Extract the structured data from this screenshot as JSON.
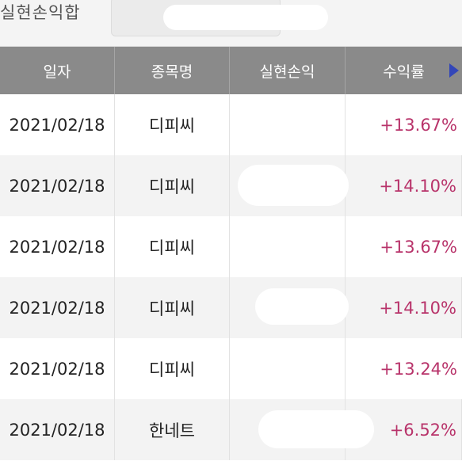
{
  "summary": {
    "label": "실현손익합",
    "value": ""
  },
  "table": {
    "headers": {
      "date": "일자",
      "name": "종목명",
      "profit": "실현손익",
      "rate": "수익률"
    },
    "scroll_icon": "triangle-right-icon",
    "rows": [
      {
        "date": "2021/02/18",
        "name": "디피씨",
        "profit": "",
        "rate": "+13.67%"
      },
      {
        "date": "2021/02/18",
        "name": "디피씨",
        "profit": "",
        "rate": "+14.10%"
      },
      {
        "date": "2021/02/18",
        "name": "디피씨",
        "profit": "",
        "rate": "+13.67%"
      },
      {
        "date": "2021/02/18",
        "name": "디피씨",
        "profit": "",
        "rate": "+14.10%"
      },
      {
        "date": "2021/02/18",
        "name": "디피씨",
        "profit": "",
        "rate": "+13.24%"
      },
      {
        "date": "2021/02/18",
        "name": "한네트",
        "profit": "",
        "rate": "+6.52%"
      }
    ]
  },
  "colors": {
    "header_bg": "#8a8a8a",
    "header_text": "#ffffff",
    "profit_rate": "#b8336a",
    "row_alt": "#f3f3f3",
    "scroll_arrow": "#3346b8"
  }
}
